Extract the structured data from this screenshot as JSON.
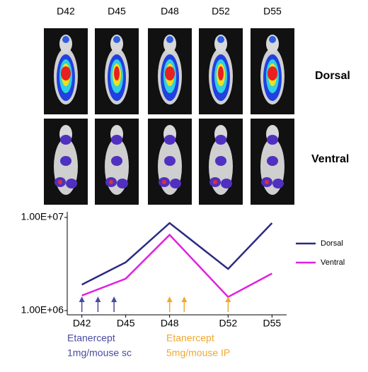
{
  "image_panel": {
    "columns": [
      "D42",
      "D45",
      "D48",
      "D52",
      "D55"
    ],
    "rows": [
      "Dorsal",
      "Ventral"
    ]
  },
  "chart_data": {
    "type": "line",
    "x": [
      42,
      45,
      48,
      52,
      55
    ],
    "xlim": [
      41,
      56
    ],
    "xticks": [
      {
        "value": 42,
        "label": "D42"
      },
      {
        "value": 45,
        "label": "D45"
      },
      {
        "value": 48,
        "label": "D48"
      },
      {
        "value": 52,
        "label": "D52"
      },
      {
        "value": 55,
        "label": "D55"
      }
    ],
    "ylim": [
      1000000,
      10000000
    ],
    "yticks": [
      {
        "value": 10000000,
        "label": "1.00E+07"
      },
      {
        "value": 1000000,
        "label": "1.00E+06"
      }
    ],
    "log_scale_y": true,
    "legend": "right",
    "series": [
      {
        "name": "Dorsal",
        "color": "#2b2b80",
        "values": [
          1900000,
          3300000,
          8700000,
          2800000,
          8700000
        ]
      },
      {
        "name": "Ventral",
        "color": "#e020e0",
        "values": [
          1450000,
          2200000,
          6500000,
          1400000,
          2500000
        ]
      }
    ],
    "annotations": [
      {
        "lines": [
          "Etanercept",
          "1mg/mouse sc"
        ],
        "color": "#4a4aa0",
        "days": [
          42,
          43.1,
          44.2
        ]
      },
      {
        "lines": [
          "Etanercept",
          "5mg/mouse IP"
        ],
        "color": "#f0a830",
        "days": [
          48,
          49,
          52
        ]
      }
    ]
  }
}
